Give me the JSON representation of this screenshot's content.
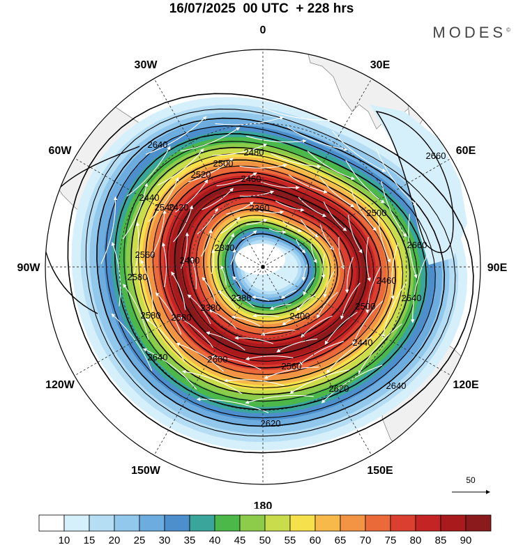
{
  "title": "16/07/2025  00 UTC  + 228 hrs",
  "brand": "MODES",
  "brand_mark": "©",
  "longitude_labels": [
    {
      "text": "0",
      "lon": 0
    },
    {
      "text": "30E",
      "lon": 30
    },
    {
      "text": "60E",
      "lon": 60
    },
    {
      "text": "90E",
      "lon": 90
    },
    {
      "text": "120E",
      "lon": 120
    },
    {
      "text": "150E",
      "lon": 150
    },
    {
      "text": "180",
      "lon": 180
    },
    {
      "text": "150W",
      "lon": -150
    },
    {
      "text": "120W",
      "lon": -120
    },
    {
      "text": "90W",
      "lon": -90
    },
    {
      "text": "60W",
      "lon": -60
    },
    {
      "text": "30W",
      "lon": -30
    }
  ],
  "contour_labels": [
    "2640",
    "2660",
    "2660",
    "2640",
    "2620",
    "2620",
    "2640",
    "2640",
    "2600",
    "2580",
    "2560",
    "2540",
    "2520",
    "2500",
    "2480",
    "2460",
    "2440",
    "2420",
    "2400",
    "2386",
    "2380",
    "2360",
    "2340",
    "2580",
    "2580",
    "2500",
    "2460",
    "2440",
    "2500",
    "2560",
    "2400"
  ],
  "wind_reference": {
    "value": "50"
  },
  "colorbar": {
    "ticks": [
      "10",
      "15",
      "20",
      "25",
      "30",
      "35",
      "40",
      "45",
      "50",
      "55",
      "60",
      "65",
      "70",
      "75",
      "80",
      "85",
      "90"
    ],
    "colors": [
      "#ffffff",
      "#d6f0fb",
      "#b5def5",
      "#92c8ec",
      "#6cacdf",
      "#4d8fcc",
      "#3aa59a",
      "#4cb84a",
      "#8ccc4a",
      "#c9dc4c",
      "#f6e04b",
      "#f7b949",
      "#f29444",
      "#ea6a3a",
      "#db3f30",
      "#c42424",
      "#a81a1c",
      "#8a1a1c"
    ]
  },
  "map_data": {
    "projection": "south-polar-stereographic",
    "field": "wind speed (shaded) and geopotential height contours",
    "shading_bands": [
      {
        "min": 10,
        "max": 15,
        "color": "#d6f0fb"
      },
      {
        "min": 15,
        "max": 20,
        "color": "#b5def5"
      },
      {
        "min": 20,
        "max": 25,
        "color": "#92c8ec"
      },
      {
        "min": 25,
        "max": 30,
        "color": "#6cacdf"
      },
      {
        "min": 30,
        "max": 35,
        "color": "#4d8fcc"
      },
      {
        "min": 35,
        "max": 40,
        "color": "#3aa59a"
      },
      {
        "min": 40,
        "max": 45,
        "color": "#4cb84a"
      },
      {
        "min": 45,
        "max": 50,
        "color": "#8ccc4a"
      },
      {
        "min": 50,
        "max": 55,
        "color": "#c9dc4c"
      },
      {
        "min": 55,
        "max": 60,
        "color": "#f6e04b"
      },
      {
        "min": 60,
        "max": 65,
        "color": "#f7b949"
      },
      {
        "min": 65,
        "max": 70,
        "color": "#f29444"
      },
      {
        "min": 70,
        "max": 75,
        "color": "#ea6a3a"
      },
      {
        "min": 75,
        "max": 80,
        "color": "#db3f30"
      },
      {
        "min": 80,
        "max": 85,
        "color": "#c42424"
      },
      {
        "min": 85,
        "max": 90,
        "color": "#a81a1c"
      },
      {
        "min": 90,
        "max": 95,
        "color": "#8a1a1c"
      }
    ]
  }
}
